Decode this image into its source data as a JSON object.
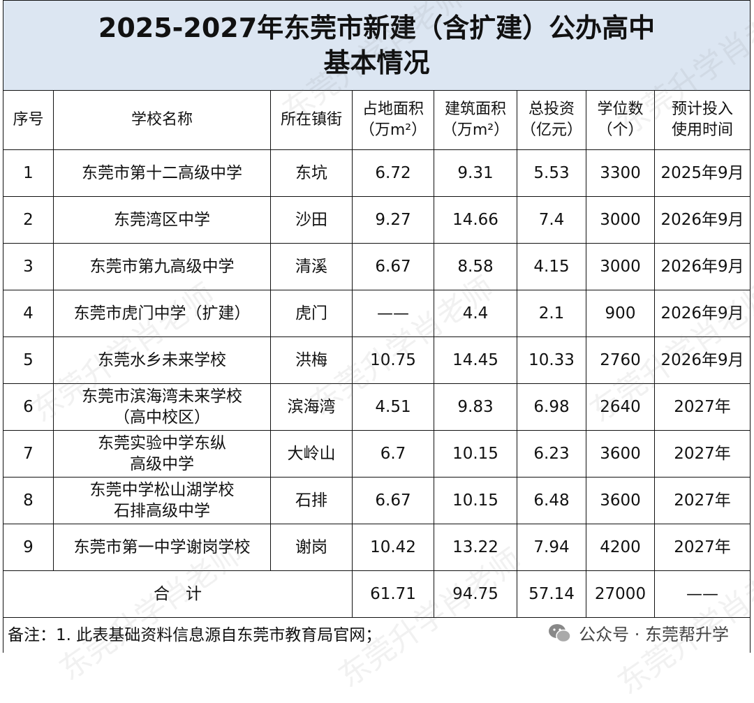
{
  "title": "2025-2027年东莞市新建（含扩建）公办高中\n基本情况",
  "table": {
    "headers": [
      "序号",
      "学校名称",
      "所在镇街",
      "占地面积\n（万m²）",
      "建筑面积\n（万m²）",
      "总投资\n（亿元）",
      "学位数\n（个）",
      "预计投入\n使用时间"
    ],
    "rows": [
      [
        "1",
        "东莞市第十二高级中学",
        "东坑",
        "6.72",
        "9.31",
        "5.53",
        "3300",
        "2025年9月"
      ],
      [
        "2",
        "东莞湾区中学",
        "沙田",
        "9.27",
        "14.66",
        "7.4",
        "3000",
        "2026年9月"
      ],
      [
        "3",
        "东莞市第九高级中学",
        "清溪",
        "6.67",
        "8.58",
        "4.15",
        "3000",
        "2026年9月"
      ],
      [
        "4",
        "东莞市虎门中学（扩建）",
        "虎门",
        "——",
        "4.4",
        "2.1",
        "900",
        "2026年9月"
      ],
      [
        "5",
        "东莞水乡未来学校",
        "洪梅",
        "10.75",
        "14.45",
        "10.33",
        "2760",
        "2026年9月"
      ],
      [
        "6",
        "东莞市滨海湾未来学校\n（高中校区）",
        "滨海湾",
        "4.51",
        "9.83",
        "6.98",
        "2640",
        "2027年"
      ],
      [
        "7",
        "东莞实验中学东纵\n高级中学",
        "大岭山",
        "6.7",
        "10.15",
        "6.23",
        "3600",
        "2027年"
      ],
      [
        "8",
        "东莞中学松山湖学校\n石排高级中学",
        "石排",
        "6.67",
        "10.15",
        "6.48",
        "3600",
        "2027年"
      ],
      [
        "9",
        "东莞市第一中学谢岗学校",
        "谢岗",
        "10.42",
        "13.22",
        "7.94",
        "4200",
        "2027年"
      ]
    ],
    "total": {
      "label": "合　计",
      "values": [
        "61.71",
        "94.75",
        "57.14",
        "27000",
        "——"
      ]
    }
  },
  "note": "备注：1. 此表基础资料信息源自东莞市教育局官网；",
  "footer": "公众号 · 东莞帮升学",
  "watermark": "东莞升学肖老师"
}
